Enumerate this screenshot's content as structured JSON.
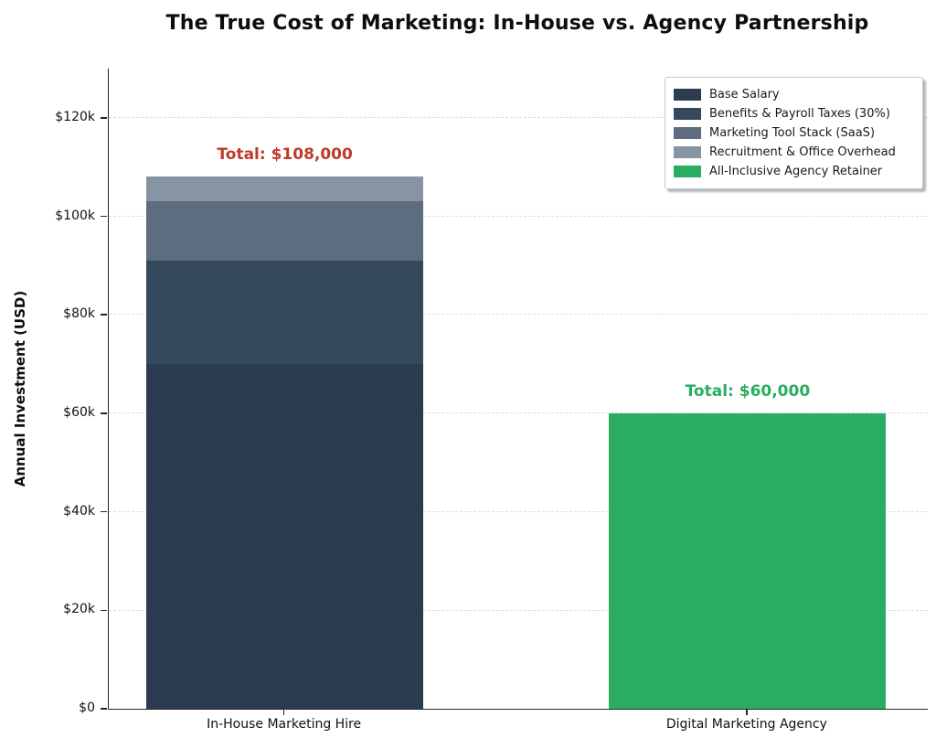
{
  "chart_data": {
    "type": "bar",
    "stacked": true,
    "title": "The True Cost of Marketing: In-House vs. Agency Partnership",
    "ylabel": "Annual Investment (USD)",
    "xlabel": "",
    "categories": [
      "In-House Marketing Hire",
      "Digital Marketing Agency"
    ],
    "ylim": [
      0,
      130000
    ],
    "yticks": [
      0,
      20000,
      40000,
      60000,
      80000,
      100000,
      120000
    ],
    "ytick_labels": [
      "$0",
      "$20k",
      "$40k",
      "$60k",
      "$80k",
      "$100k",
      "$120k"
    ],
    "grid": "horizontal-dashed",
    "legend_position": "upper right",
    "series": [
      {
        "name": "Base Salary",
        "color": "#2b3c50",
        "values": [
          70000,
          0
        ]
      },
      {
        "name": "Benefits & Payroll Taxes (30%)",
        "color": "#35495d",
        "values": [
          21000,
          0
        ]
      },
      {
        "name": "Marketing Tool Stack (SaaS)",
        "color": "#5d6c7f",
        "values": [
          12000,
          0
        ]
      },
      {
        "name": "Recruitment & Office Overhead",
        "color": "#8694a4",
        "values": [
          5000,
          0
        ]
      },
      {
        "name": "All-Inclusive Agency Retainer",
        "color": "#2aad61",
        "values": [
          0,
          60000
        ]
      }
    ],
    "totals": [
      {
        "text": "Total: $108,000",
        "category": 0,
        "value": 108000,
        "color": "#c0392b"
      },
      {
        "text": "Total: $60,000",
        "category": 1,
        "value": 60000,
        "color": "#27ae60"
      }
    ]
  }
}
